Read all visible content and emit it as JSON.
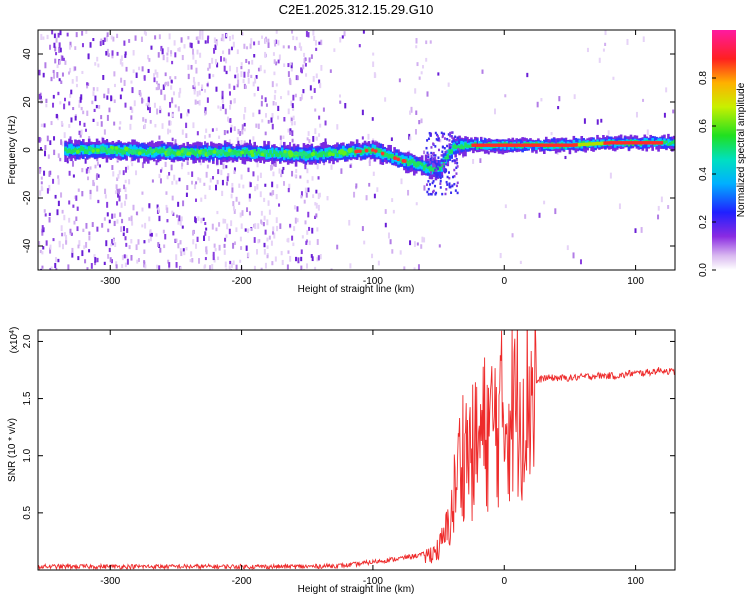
{
  "title": "C2E1.2025.312.15.29.G10",
  "chart_data": [
    {
      "type": "heatmap",
      "xlabel": "Height of straight line (km)",
      "ylabel": "Frequency (Hz)",
      "xlim": [
        -355,
        130
      ],
      "ylim": [
        -50,
        50
      ],
      "x_ticks": [
        -300,
        -200,
        -100,
        0,
        100
      ],
      "x_tick_labels": [
        "-300",
        "-200",
        "-100",
        "0",
        "100"
      ],
      "y_ticks": [
        -40,
        -20,
        0,
        20,
        40
      ],
      "y_tick_labels": [
        "-40",
        "-20",
        "0",
        "20",
        "40"
      ],
      "colorbar": {
        "label": "Normalized spectral amplitude",
        "range": [
          0,
          1
        ],
        "ticks": [
          0.0,
          0.2,
          0.4,
          0.6,
          0.8
        ],
        "tick_labels": [
          "0.0",
          "0.2",
          "0.4",
          "0.6",
          "0.8"
        ],
        "colormap": "rainbow (white-purple-blue-cyan-green-yellow-red-magenta)"
      },
      "ridge": {
        "x": [
          -330,
          -300,
          -250,
          -200,
          -150,
          -120,
          -100,
          -80,
          -60,
          -50,
          -40,
          -30,
          -20,
          0,
          50,
          80,
          100,
          130
        ],
        "freq": [
          0,
          0,
          -1,
          -1,
          -2,
          -1,
          0,
          -4,
          -7,
          -8,
          1,
          2,
          2,
          2,
          2,
          3,
          3,
          3
        ]
      }
    },
    {
      "type": "line",
      "xlabel": "Height of straight line (km)",
      "ylabel": "SNR (10 * v/v)",
      "y_multiplier_label": "(x10",
      "y_multiplier_exp": "4",
      "y_multiplier_close": ")",
      "xlim": [
        -355,
        130
      ],
      "ylim": [
        0,
        2.1
      ],
      "x_ticks": [
        -300,
        -200,
        -100,
        0,
        100
      ],
      "x_tick_labels": [
        "-300",
        "-200",
        "-100",
        "0",
        "100"
      ],
      "y_ticks": [
        0.5,
        1.0,
        1.5,
        2.0
      ],
      "y_tick_labels": [
        "0.5",
        "1.0",
        "1.5",
        "2.0"
      ],
      "series": [
        {
          "name": "SNR",
          "color": "#ee2a2a",
          "x": [
            -355,
            -300,
            -250,
            -200,
            -150,
            -120,
            -100,
            -80,
            -60,
            -50,
            -45,
            -40,
            -35,
            -30,
            -25,
            -20,
            -15,
            -10,
            -5,
            0,
            5,
            10,
            15,
            20,
            25,
            30,
            40,
            50,
            60,
            70,
            80,
            90,
            95,
            100,
            110,
            115,
            120,
            125,
            130
          ],
          "values": [
            0.01,
            0.01,
            0.01,
            0.01,
            0.01,
            0.02,
            0.05,
            0.08,
            0.12,
            0.18,
            0.3,
            0.5,
            0.9,
            1.1,
            1.0,
            1.1,
            1.2,
            1.25,
            1.3,
            1.35,
            1.4,
            1.45,
            1.5,
            1.6,
            1.65,
            1.68,
            1.68,
            1.68,
            1.69,
            1.7,
            1.7,
            1.7,
            1.72,
            1.72,
            1.73,
            1.74,
            1.75,
            1.74,
            1.73
          ]
        }
      ]
    }
  ]
}
